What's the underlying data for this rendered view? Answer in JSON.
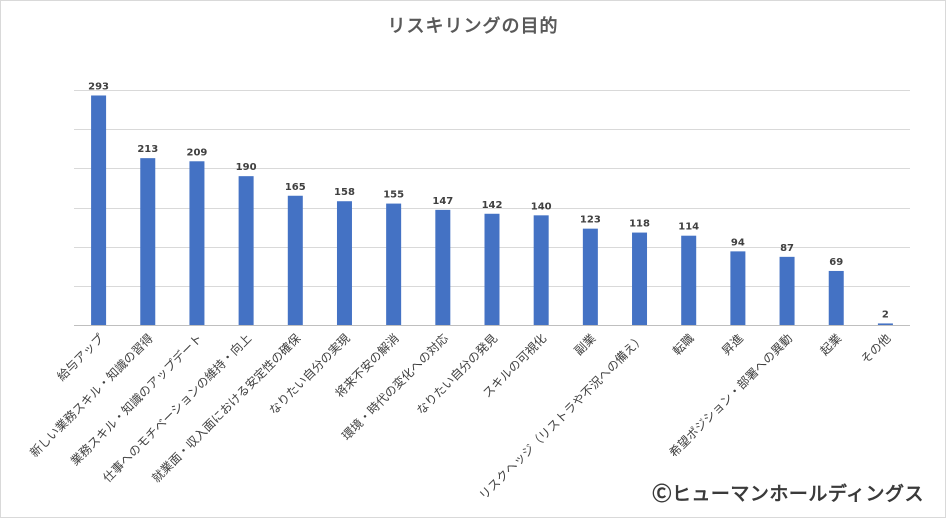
{
  "chart_data": {
    "type": "bar",
    "title": "リスキリングの目的",
    "categories": [
      "給与アップ",
      "新しい業務スキル・知識の習得",
      "業務スキル・知識のアップデート",
      "仕事へのモチベーションの維持・向上",
      "就業面・収入面における安定性の確保",
      "なりたい自分の実現",
      "将来不安の解消",
      "環境・時代の変化への対応",
      "なりたい自分の発見",
      "スキルの可視化",
      "副業",
      "リスクヘッジ（リストラや不況への備え）",
      "転職",
      "昇進",
      "希望ポジション・部署への異動",
      "起業",
      "その他"
    ],
    "values": [
      293,
      213,
      209,
      190,
      165,
      158,
      155,
      147,
      142,
      140,
      123,
      118,
      114,
      94,
      87,
      69,
      2
    ],
    "ylim": [
      0,
      300
    ],
    "gridlines": [
      0,
      50,
      100,
      150,
      200,
      250,
      300
    ],
    "grid": true,
    "bar_color": "#4472c4",
    "xlabel": "",
    "ylabel": ""
  },
  "copyright": "Ⓒヒューマンホールディングス"
}
